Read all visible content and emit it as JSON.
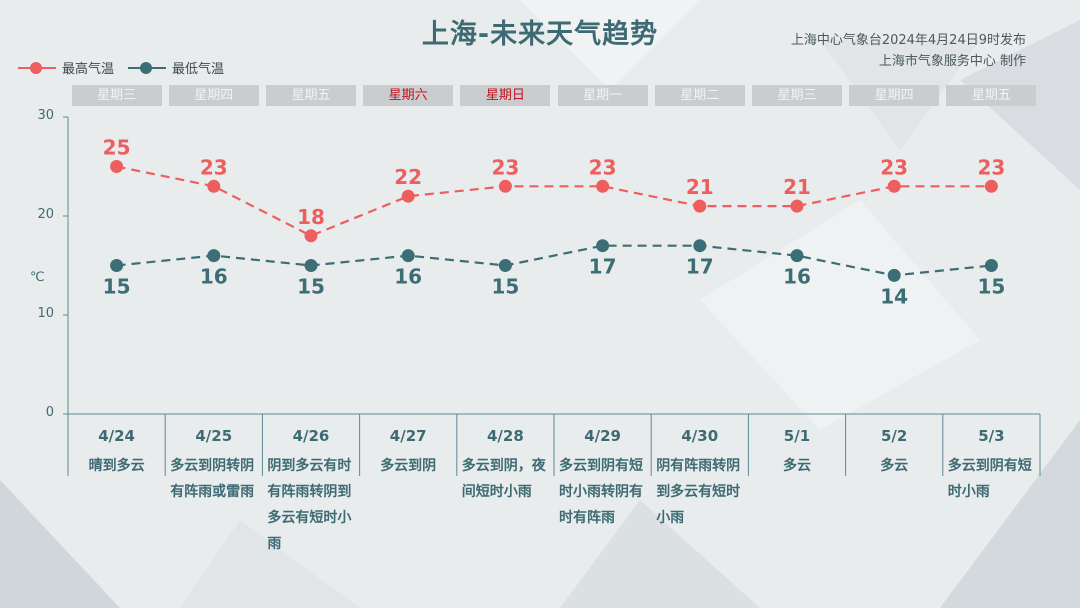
{
  "title": "上海-未来天气趋势",
  "issuer": {
    "line1": "上海中心气象台2024年4月24日9时发布",
    "line2": "上海市气象服务中心 制作"
  },
  "legend": {
    "high_label": "最高气温",
    "low_label": "最低气温"
  },
  "y_unit": "℃",
  "colors": {
    "high": "#ee5e5e",
    "low": "#3c6e75",
    "weekend_text": "#c1121f"
  },
  "days": [
    {
      "weekday": "星期三",
      "date": "4/24",
      "weather": "晴到多云",
      "weekend": false
    },
    {
      "weekday": "星期四",
      "date": "4/25",
      "weather": "多云到阴转阴有阵雨或雷雨",
      "weekend": false
    },
    {
      "weekday": "星期五",
      "date": "4/26",
      "weather": "阴到多云有时有阵雨转阴到多云有短时小雨",
      "weekend": false
    },
    {
      "weekday": "星期六",
      "date": "4/27",
      "weather": "多云到阴",
      "weekend": true
    },
    {
      "weekday": "星期日",
      "date": "4/28",
      "weather": "多云到阴，夜间短时小雨",
      "weekend": true
    },
    {
      "weekday": "星期一",
      "date": "4/29",
      "weather": "多云到阴有短时小雨转阴有时有阵雨",
      "weekend": false
    },
    {
      "weekday": "星期二",
      "date": "4/30",
      "weather": "阴有阵雨转阴到多云有短时小雨",
      "weekend": false
    },
    {
      "weekday": "星期三",
      "date": "5/1",
      "weather": "多云",
      "weekend": false
    },
    {
      "weekday": "星期四",
      "date": "5/2",
      "weather": "多云",
      "weekend": false
    },
    {
      "weekday": "星期五",
      "date": "5/3",
      "weather": "多云到阴有短时小雨",
      "weekend": false
    }
  ],
  "chart_data": {
    "type": "line",
    "categories": [
      "4/24",
      "4/25",
      "4/26",
      "4/27",
      "4/28",
      "4/29",
      "4/30",
      "5/1",
      "5/2",
      "5/3"
    ],
    "series": [
      {
        "name": "最高气温",
        "values": [
          25,
          23,
          18,
          22,
          23,
          23,
          21,
          21,
          23,
          23
        ]
      },
      {
        "name": "最低气温",
        "values": [
          15,
          16,
          15,
          16,
          15,
          17,
          17,
          16,
          14,
          15
        ]
      }
    ],
    "ylabel": "℃",
    "ylim": [
      0,
      30
    ],
    "yticks": [
      0,
      10,
      20,
      30
    ],
    "legend": "top-left",
    "line_style": "dashed",
    "grid": false
  }
}
